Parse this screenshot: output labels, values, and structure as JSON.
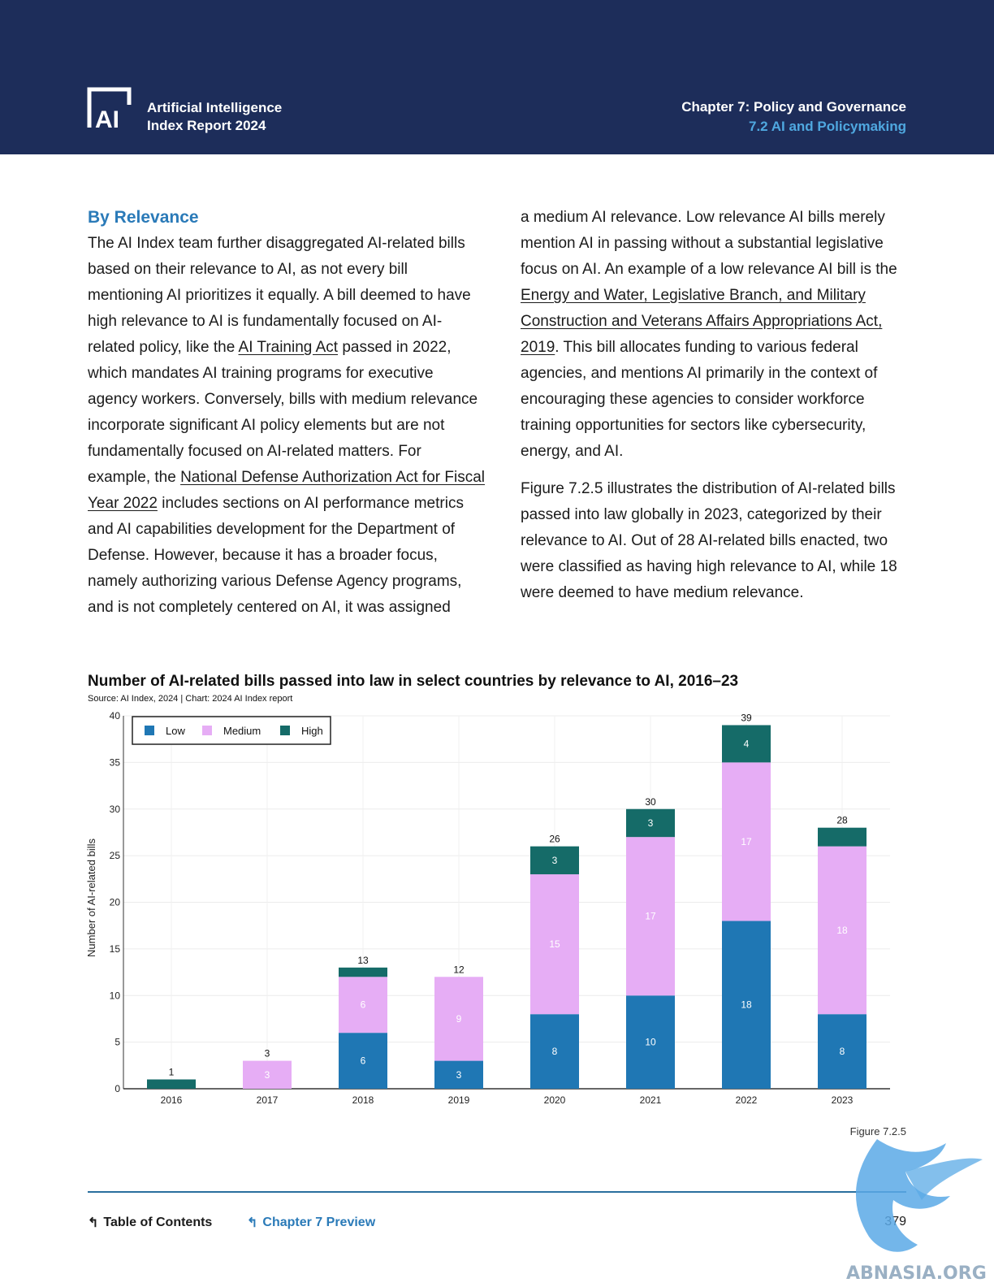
{
  "header": {
    "report_title_line1": "Artificial Intelligence",
    "report_title_line2": "Index Report 2024",
    "logo_text": "AI",
    "chapter_title": "Chapter 7: Policy and Governance",
    "chapter_section": "7.2 AI and Policymaking",
    "background_color": "#1d2d5a",
    "accent_color": "#4fa8e0"
  },
  "body": {
    "heading": "By Relevance",
    "left_para": {
      "t1": "The AI Index team further disaggregated AI-related bills based on their relevance to AI, as not every bill mentioning AI prioritizes it equally. A bill deemed to have high relevance to AI is fundamentally focused on AI-related policy, like the ",
      "link1": "AI Training Act",
      "t2": " passed in 2022, which mandates AI training programs for executive agency workers. Conversely, bills with medium relevance incorporate significant AI policy elements but are not fundamentally focused on AI-related matters. For example, the ",
      "link2": "National Defense Authorization Act for Fiscal Year 2022",
      "t3": " includes sections on AI performance metrics and AI capabilities development for the Department of Defense. However, because it has a broader focus, namely authorizing various Defense Agency programs, and is not completely centered on AI, it was assigned"
    },
    "right_para1": {
      "t1": "a medium AI relevance. Low relevance AI bills merely mention AI in passing without a substantial legislative focus on AI. An example of a low relevance AI bill is the ",
      "link": "Energy and Water, Legislative Branch, and Military Construction and Veterans Affairs Appropriations Act, 2019",
      "t2": ". This bill allocates funding to various federal agencies, and mentions AI primarily in the context of encouraging these agencies to consider workforce training opportunities for sectors like cybersecurity, energy, and AI."
    },
    "right_para2": "Figure 7.2.5 illustrates the distribution of AI-related bills passed into law globally in 2023, categorized by their relevance to AI. Out of 28 AI-related bills enacted, two were classified as having high relevance to AI, while 18 were deemed to have medium relevance."
  },
  "chart_data": {
    "type": "bar",
    "stacked": true,
    "title": "Number of AI-related bills passed into law in select countries by relevance to AI, 2016–23",
    "source": "Source: AI Index, 2024 | Chart: 2024 AI Index report",
    "ylabel": "Number of AI-related bills",
    "xlabel": "",
    "ylim": [
      0,
      40
    ],
    "yticks": [
      0,
      5,
      10,
      15,
      20,
      25,
      30,
      35,
      40
    ],
    "grid": true,
    "legend_position": "top-left",
    "categories": [
      "2016",
      "2017",
      "2018",
      "2019",
      "2020",
      "2021",
      "2022",
      "2023"
    ],
    "series": [
      {
        "name": "Low",
        "color": "#1f77b4",
        "label_color": "#ffffff",
        "values": [
          0,
          0,
          6,
          3,
          8,
          10,
          18,
          8
        ],
        "labels": [
          "",
          "",
          "6",
          "3",
          "8",
          "10",
          "18",
          "8"
        ]
      },
      {
        "name": "Medium",
        "color": "#e6adf5",
        "label_color": "#ffffff",
        "values": [
          0,
          3,
          6,
          9,
          15,
          17,
          17,
          18
        ],
        "labels": [
          "",
          "3",
          "6",
          "9",
          "15",
          "17",
          "17",
          "18"
        ]
      },
      {
        "name": "High",
        "color": "#156b68",
        "label_color": "#ffffff",
        "values": [
          1,
          0,
          1,
          0,
          3,
          3,
          4,
          2
        ],
        "labels": [
          "",
          "",
          "",
          "",
          "3",
          "3",
          "4",
          ""
        ]
      }
    ],
    "totals": [
      1,
      3,
      13,
      12,
      26,
      30,
      39,
      28
    ]
  },
  "figure_label": "Figure 7.2.5",
  "footer": {
    "toc_label": "Table of Contents",
    "preview_label": "Chapter 7 Preview",
    "page_number": "379",
    "rule_color": "#2a6f9e"
  },
  "watermark": {
    "text": "ABNASIA.ORG",
    "color": "#5aa9e6"
  }
}
